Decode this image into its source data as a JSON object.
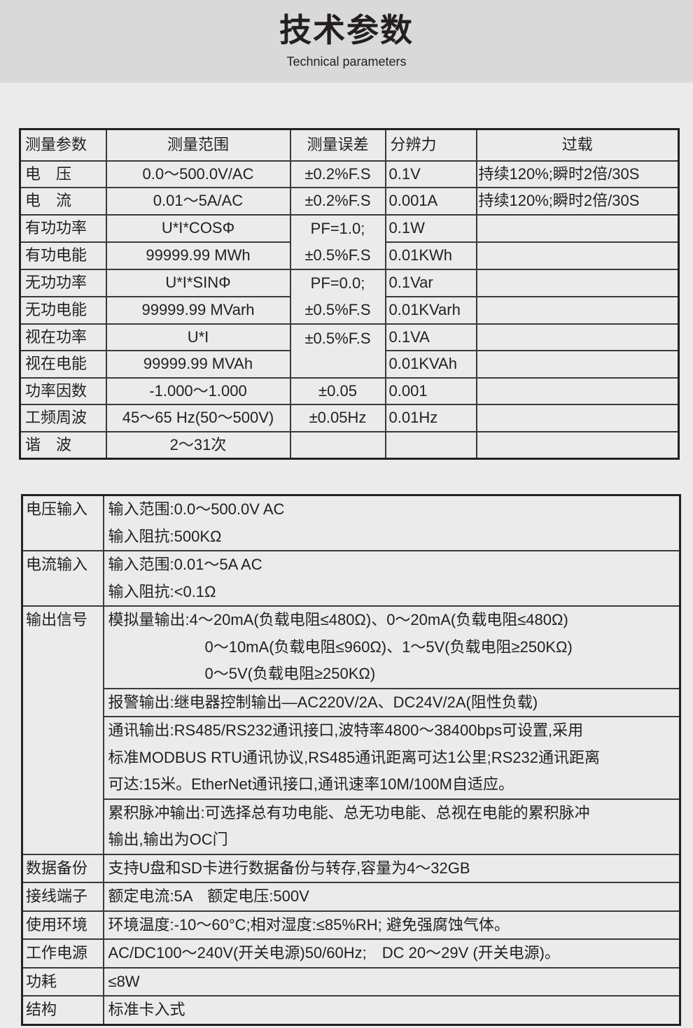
{
  "header": {
    "title": "技术参数",
    "subtitle": "Technical parameters"
  },
  "measure_table": {
    "headers": [
      "测量参数",
      "测量范围",
      "测量误差",
      "分辨力",
      "过载"
    ],
    "rows": [
      {
        "param": "电　压",
        "range": "0.0～500.0V/AC",
        "error": "±0.2%F.S",
        "resolution": "0.1V",
        "overload": "持续120%;瞬时2倍/30S"
      },
      {
        "param": "电　流",
        "range": "0.01～5A/AC",
        "error": "±0.2%F.S",
        "resolution": "0.001A",
        "overload": "持续120%;瞬时2倍/30S"
      },
      {
        "param": "有功功率",
        "range": "U*I*COSΦ",
        "error_line1": "PF=1.0;",
        "error_line2": "±0.5%F.S",
        "resolution": "0.1W",
        "overload": ""
      },
      {
        "param": "有功电能",
        "range": "99999.99 MWh",
        "resolution": "0.01KWh",
        "overload": ""
      },
      {
        "param": "无功功率",
        "range": "U*I*SINΦ",
        "error_line1": "PF=0.0;",
        "error_line2": "±0.5%F.S",
        "resolution": "0.1Var",
        "overload": ""
      },
      {
        "param": "无功电能",
        "range": "99999.99 MVarh",
        "resolution": "0.01KVarh",
        "overload": ""
      },
      {
        "param": "视在功率",
        "range": "U*I",
        "error": "±0.5%F.S",
        "resolution": "0.1VA",
        "overload": ""
      },
      {
        "param": "视在电能",
        "range": "99999.99 MVAh",
        "resolution": "0.01KVAh",
        "overload": ""
      },
      {
        "param": "功率因数",
        "range": "-1.000～1.000",
        "error": "±0.05",
        "resolution": "0.001",
        "overload": ""
      },
      {
        "param": "工频周波",
        "range": "45～65 Hz(50～500V)",
        "error": "±0.05Hz",
        "resolution": "0.01Hz",
        "overload": ""
      },
      {
        "param": "谐　波",
        "range": "2～31次",
        "error": "",
        "resolution": "",
        "overload": ""
      }
    ]
  },
  "spec_table": {
    "voltage_input": {
      "label": "电压输入",
      "lines": [
        "输入范围:0.0～500.0V AC",
        "输入阻抗:500KΩ"
      ]
    },
    "current_input": {
      "label": "电流输入",
      "lines": [
        "输入范围:0.01～5A AC",
        "输入阻抗:<0.1Ω"
      ]
    },
    "output": {
      "label": "输出信号",
      "analog": [
        "模拟量输出:4～20mA(负载电阻≤480Ω)、0～20mA(负载电阻≤480Ω)",
        "0～10mA(负载电阻≤960Ω)、1～5V(负载电阻≥250KΩ)",
        "0～5V(负载电阻≥250KΩ)"
      ],
      "alarm": "报警输出:继电器控制输出—AC220V/2A、DC24V/2A(阻性负载)",
      "comm": [
        "通讯输出:RS485/RS232通讯接口,波特率4800～38400bps可设置,采用",
        "标准MODBUS RTU通讯协议,RS485通讯距离可达1公里;RS232通讯距离",
        "可达:15米。EtherNet通讯接口,通讯速率10M/100M自适应。"
      ],
      "pulse": [
        "累积脉冲输出:可选择总有功电能、总无功电能、总视在电能的累积脉冲",
        "输出,输出为OC门"
      ]
    },
    "backup": {
      "label": "数据备份",
      "value": "支持U盘和SD卡进行数据备份与转存,容量为4～32GB"
    },
    "terminal": {
      "label": "接线端子",
      "value": "额定电流:5A　额定电压:500V"
    },
    "environment": {
      "label": "使用环境",
      "value": "环境温度:-10～60°C;相对湿度:≤85%RH; 避免强腐蚀气体。"
    },
    "power": {
      "label": "工作电源",
      "value": "AC/DC100～240V(开关电源)50/60Hz;　DC 20～29V (开关电源)。"
    },
    "consumption": {
      "label": "功耗",
      "value": "≤8W"
    },
    "structure": {
      "label": "结构",
      "value": "标准卡入式"
    }
  }
}
